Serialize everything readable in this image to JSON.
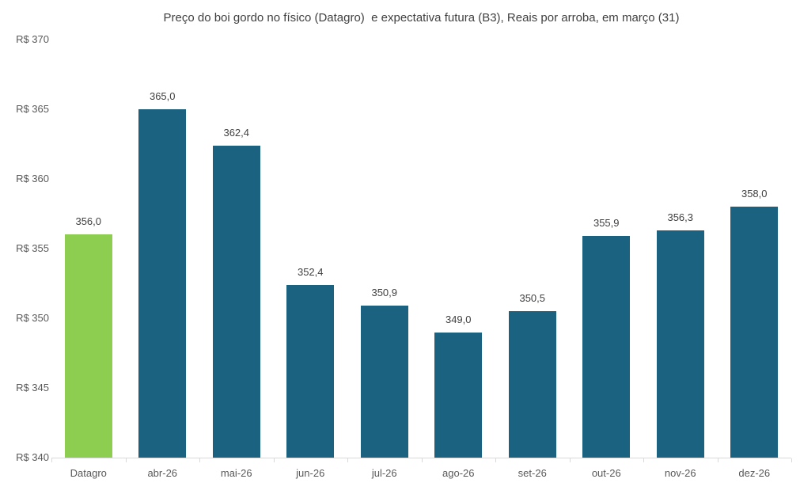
{
  "chart_data": {
    "type": "bar",
    "title": "Preço do boi gordo no físico (Datagro)  e expectativa futura (B3), Reais por arroba, em março (31)",
    "categories": [
      "Datagro",
      "abr-26",
      "mai-26",
      "jun-26",
      "jul-26",
      "ago-26",
      "set-26",
      "out-26",
      "nov-26",
      "dez-26"
    ],
    "values": [
      356.0,
      365.0,
      362.4,
      352.4,
      350.9,
      349.0,
      350.5,
      355.9,
      356.3,
      358.0
    ],
    "value_labels": [
      "356,0",
      "365,0",
      "362,4",
      "352,4",
      "350,9",
      "349,0",
      "350,5",
      "355,9",
      "356,3",
      "358,0"
    ],
    "xlabel": "",
    "ylabel": "",
    "ylim": [
      340,
      370
    ],
    "yticks": [
      340,
      345,
      350,
      355,
      360,
      365,
      370
    ],
    "ytick_labels": [
      "R$ 340",
      "R$ 345",
      "R$ 350",
      "R$ 355",
      "R$ 360",
      "R$ 365",
      "R$ 370"
    ],
    "grid": false,
    "legend_position": "none",
    "series_colors": {
      "datagro_bar": "#8DCE50",
      "futures_bar": "#1A6280"
    },
    "axis_line_color": "#D9D9D9",
    "title_color": "#404040",
    "value_label_color": "#404040",
    "axis_label_color": "#595959"
  }
}
